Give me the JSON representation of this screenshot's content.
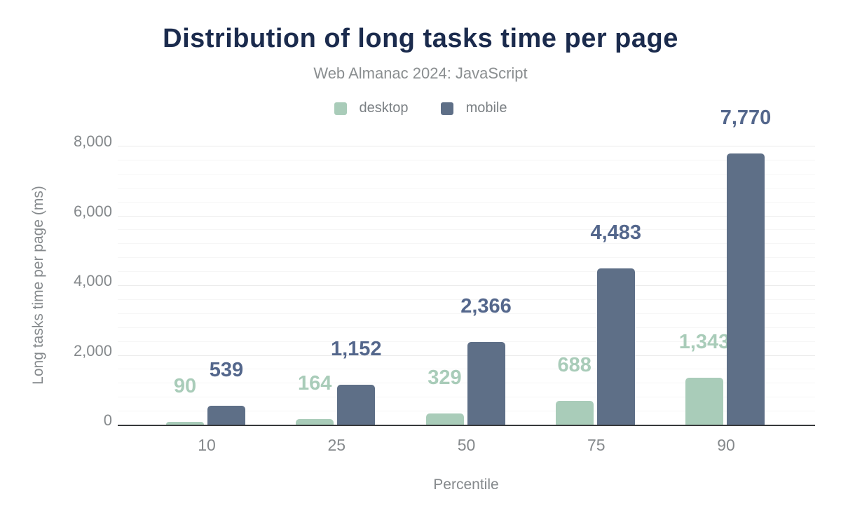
{
  "chart_data": {
    "type": "bar",
    "title": "Distribution of long tasks time per page",
    "subtitle": "Web Almanac 2024: JavaScript",
    "xlabel": "Percentile",
    "ylabel": "Long tasks time per page (ms)",
    "categories": [
      "10",
      "25",
      "50",
      "75",
      "90"
    ],
    "series": [
      {
        "name": "desktop",
        "color": "#a9ccb9",
        "label_color": "#a9ccb9",
        "values": [
          90,
          164,
          329,
          688,
          1343
        ]
      },
      {
        "name": "mobile",
        "color": "#5e6f87",
        "label_color": "#54678c",
        "values": [
          539,
          1152,
          2366,
          4483,
          7770
        ]
      }
    ],
    "ylim": [
      0,
      8000
    ],
    "y_ticks": [
      {
        "value": 0,
        "label": "0"
      },
      {
        "value": 2000,
        "label": "2,000"
      },
      {
        "value": 4000,
        "label": "4,000"
      },
      {
        "value": 6000,
        "label": "6,000"
      },
      {
        "value": 8000,
        "label": "8,000"
      }
    ],
    "y_tick_interval": 2000,
    "y_minor_interval": 400,
    "grid": true,
    "legend_position": "top",
    "title_color": "#1b2b4d",
    "subtitle_color": "#8a8e90",
    "axis_text_color": "#85898c",
    "axis_line_color": "#37393b"
  }
}
